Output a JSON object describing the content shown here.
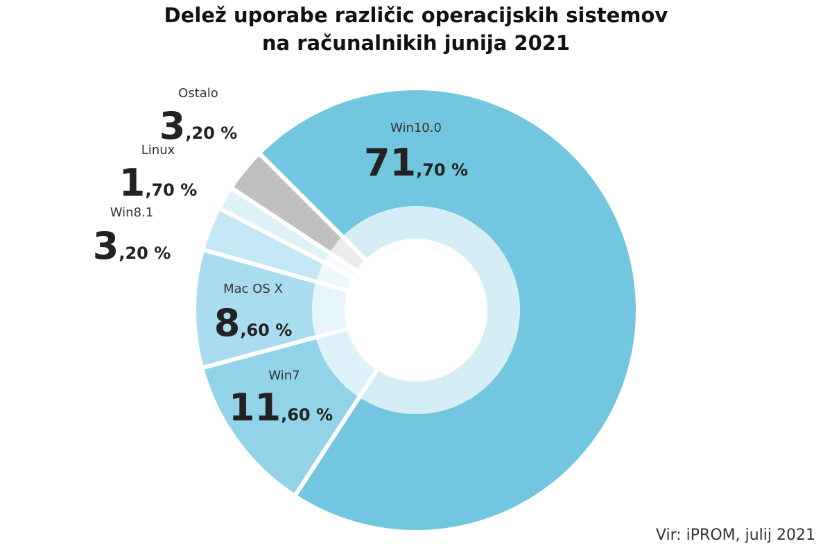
{
  "chart_data": {
    "type": "pie",
    "title": [
      "Delež uporabe različic operacijskih sistemov",
      "na računalnikih junija 2021"
    ],
    "categories": [
      "Win10.0",
      "Win7",
      "Mac OS X",
      "Win8.1",
      "Linux",
      "Ostalo"
    ],
    "values": [
      71.7,
      11.6,
      8.6,
      3.2,
      1.7,
      3.2
    ],
    "value_labels": [
      "71,70 %",
      "11,60 %",
      "8,60 %",
      "3,20 %",
      "1,70 %",
      "3,20 %"
    ],
    "colors": [
      "#72c6e0",
      "#93d3ea",
      "#a9dcee",
      "#c4e7f3",
      "#dff2f8",
      "#c0c0c0"
    ],
    "source": "Vir: iPROM, julij 2021"
  }
}
